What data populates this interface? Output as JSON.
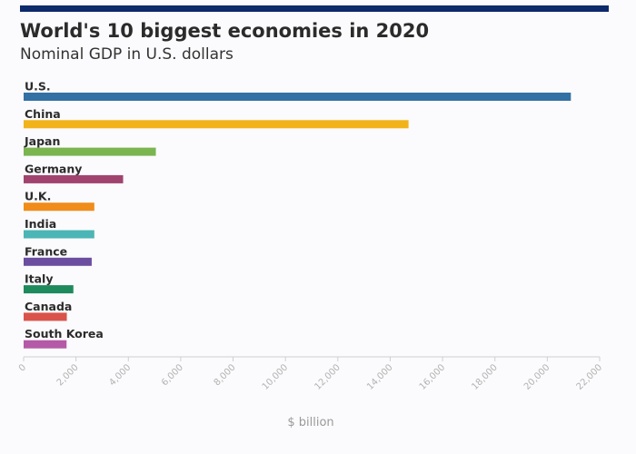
{
  "header": {
    "title": "World's 10 biggest economies in 2020",
    "subtitle": "Nominal GDP in U.S. dollars"
  },
  "colors": {
    "top_bar": "#0d2a6a"
  },
  "chart_data": {
    "type": "bar",
    "orientation": "horizontal",
    "title": "World's 10 biggest economies in 2020",
    "subtitle": "Nominal GDP in U.S. dollars",
    "xlabel": "$ billion",
    "ylabel": "",
    "xlim": [
      0,
      22000
    ],
    "x_ticks": [
      0,
      2000,
      4000,
      6000,
      8000,
      10000,
      12000,
      14000,
      16000,
      18000,
      20000,
      22000
    ],
    "x_tick_labels": [
      "0",
      "2,000",
      "4,000",
      "6,000",
      "8,000",
      "10,000",
      "12,000",
      "14,000",
      "16,000",
      "18,000",
      "20,000",
      "22,000"
    ],
    "grid": false,
    "categories": [
      "U.S.",
      "China",
      "Japan",
      "Germany",
      "U.K.",
      "India",
      "France",
      "Italy",
      "Canada",
      "South Korea"
    ],
    "values": [
      20900,
      14700,
      5050,
      3800,
      2700,
      2700,
      2600,
      1900,
      1650,
      1640
    ],
    "colors": [
      "#3370a3",
      "#f2b21a",
      "#7ab550",
      "#a0436f",
      "#f08c1a",
      "#4cb5b5",
      "#6b4ea0",
      "#1f8a5c",
      "#d9534a",
      "#b45aa7"
    ]
  }
}
